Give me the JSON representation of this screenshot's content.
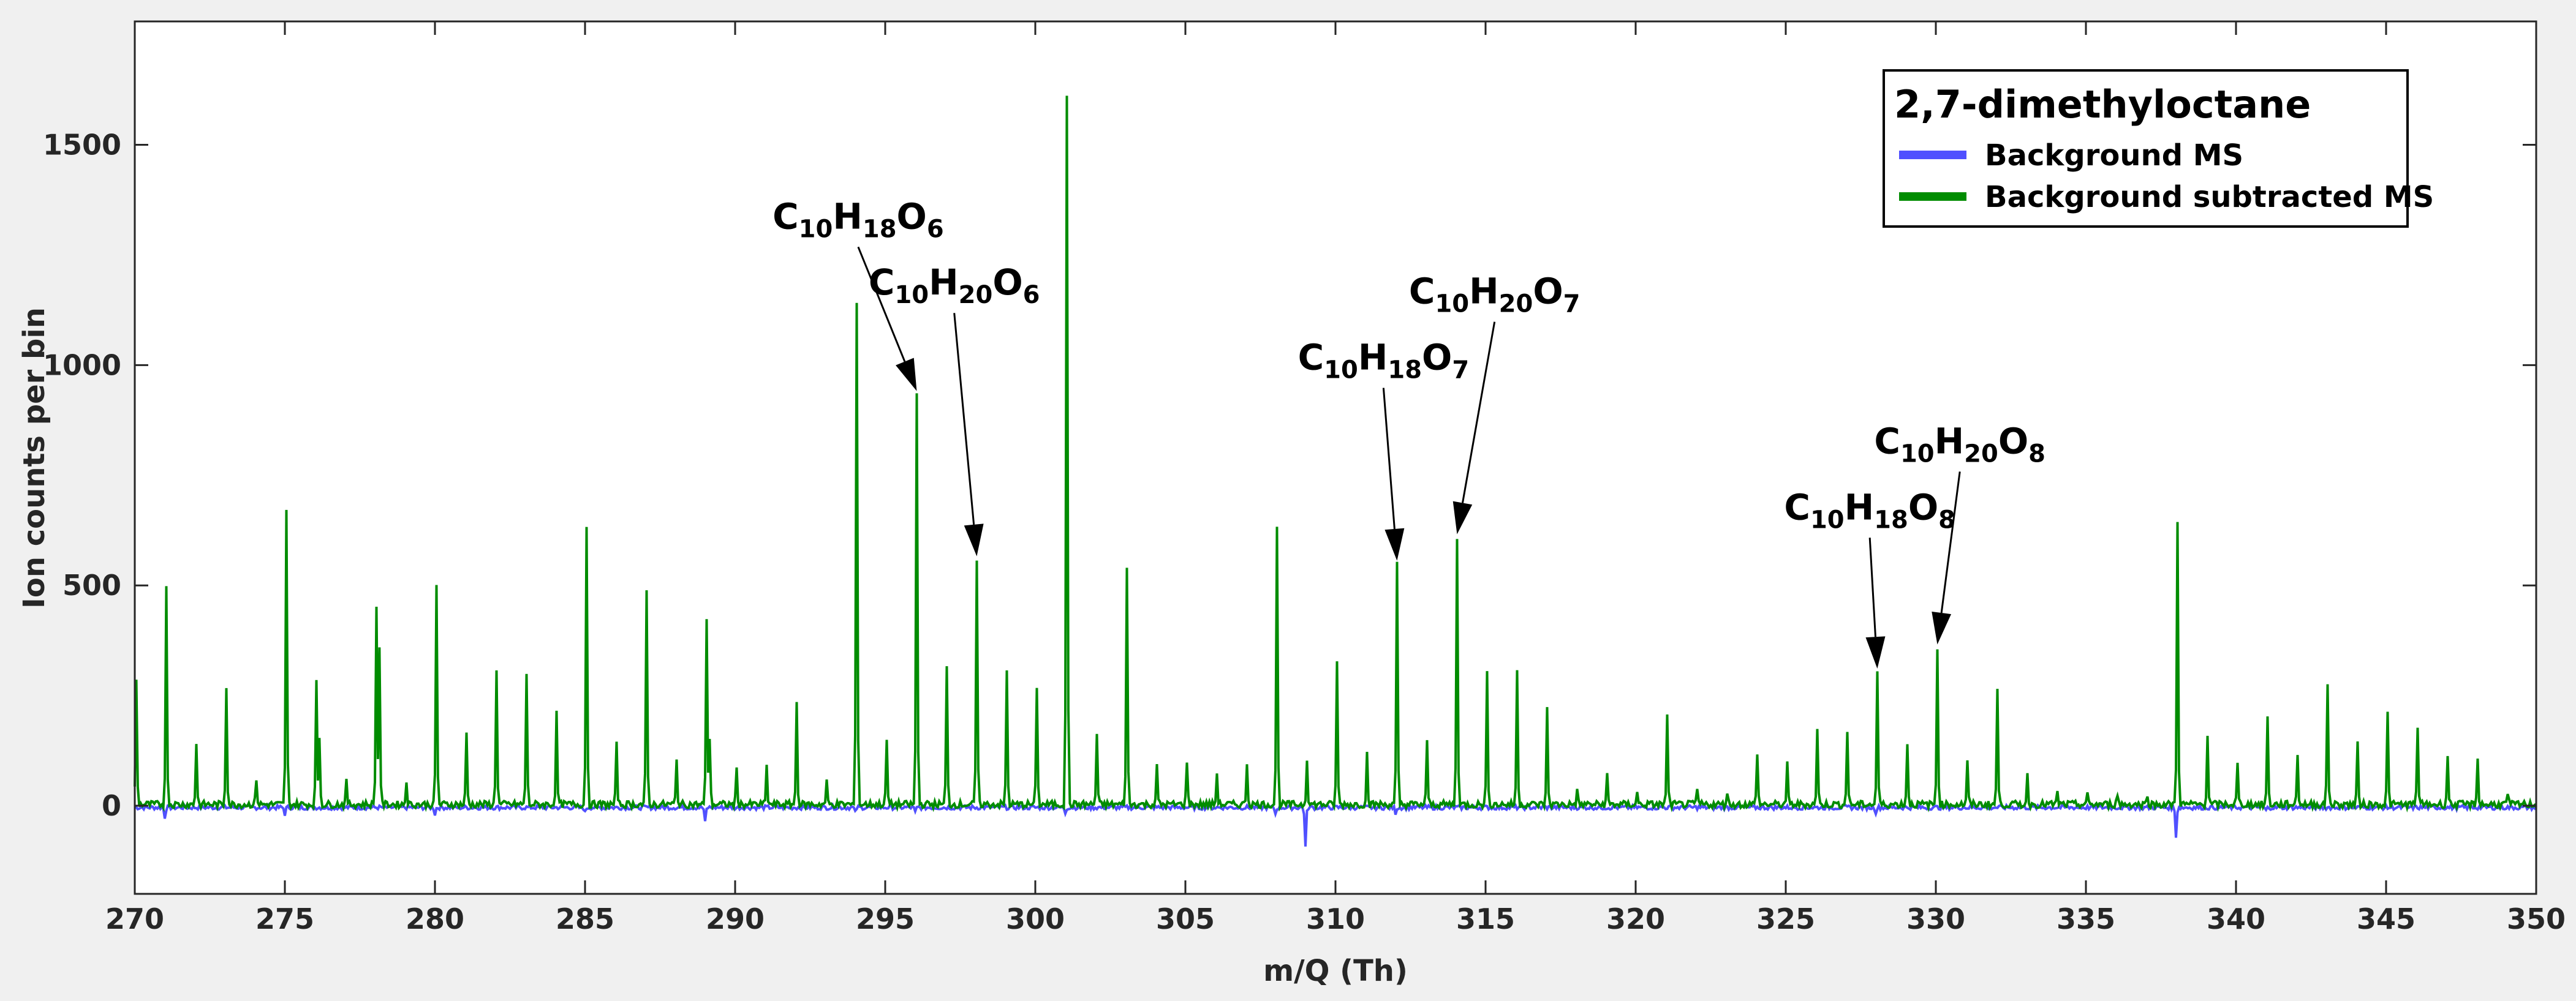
{
  "chart_data": {
    "type": "line",
    "title": "2,7-dimethyloctane",
    "xlabel": "m/Q (Th)",
    "ylabel": "Ion counts per bin",
    "xlim": [
      270,
      350
    ],
    "ylim": [
      -200,
      1780
    ],
    "xticks": [
      270,
      275,
      280,
      285,
      290,
      295,
      300,
      305,
      310,
      315,
      320,
      325,
      330,
      335,
      340,
      345,
      350
    ],
    "yticks": [
      0,
      500,
      1000,
      1500
    ],
    "grid": false,
    "legend_position": "top-right",
    "series": [
      {
        "name": "Background MS",
        "color": "#5050ff",
        "peaks": [
          {
            "x": 271.0,
            "y": -22
          },
          {
            "x": 275.0,
            "y": -15
          },
          {
            "x": 280.0,
            "y": -15
          },
          {
            "x": 285.0,
            "y": -12
          },
          {
            "x": 289.0,
            "y": -35
          },
          {
            "x": 294.0,
            "y": -12
          },
          {
            "x": 296.0,
            "y": -12
          },
          {
            "x": 301.0,
            "y": -12
          },
          {
            "x": 308.0,
            "y": -15
          },
          {
            "x": 309.0,
            "y": -90
          },
          {
            "x": 312.0,
            "y": -12
          },
          {
            "x": 328.0,
            "y": -10
          },
          {
            "x": 338.0,
            "y": -65
          },
          {
            "x": 341.0,
            "y": -8
          }
        ]
      },
      {
        "name": "Background subtracted MS",
        "color": "#008c00",
        "peaks": [
          {
            "x": 270.05,
            "y": 285
          },
          {
            "x": 271.05,
            "y": 490
          },
          {
            "x": 272.05,
            "y": 140
          },
          {
            "x": 273.05,
            "y": 270
          },
          {
            "x": 274.05,
            "y": 60
          },
          {
            "x": 275.05,
            "y": 665
          },
          {
            "x": 276.05,
            "y": 275
          },
          {
            "x": 276.15,
            "y": 155
          },
          {
            "x": 277.05,
            "y": 50
          },
          {
            "x": 278.05,
            "y": 445
          },
          {
            "x": 278.15,
            "y": 360
          },
          {
            "x": 279.05,
            "y": 55
          },
          {
            "x": 280.05,
            "y": 495
          },
          {
            "x": 281.05,
            "y": 160
          },
          {
            "x": 282.05,
            "y": 310
          },
          {
            "x": 283.05,
            "y": 295
          },
          {
            "x": 284.05,
            "y": 205
          },
          {
            "x": 285.05,
            "y": 635
          },
          {
            "x": 286.05,
            "y": 135
          },
          {
            "x": 287.05,
            "y": 480
          },
          {
            "x": 288.05,
            "y": 100
          },
          {
            "x": 289.05,
            "y": 425
          },
          {
            "x": 289.15,
            "y": 150
          },
          {
            "x": 290.05,
            "y": 80
          },
          {
            "x": 291.05,
            "y": 85
          },
          {
            "x": 292.05,
            "y": 230
          },
          {
            "x": 293.05,
            "y": 50
          },
          {
            "x": 294.05,
            "y": 1145
          },
          {
            "x": 295.05,
            "y": 145
          },
          {
            "x": 296.05,
            "y": 930
          },
          {
            "x": 297.05,
            "y": 310
          },
          {
            "x": 298.05,
            "y": 555
          },
          {
            "x": 299.05,
            "y": 305
          },
          {
            "x": 300.05,
            "y": 270
          },
          {
            "x": 301.05,
            "y": 1610
          },
          {
            "x": 302.05,
            "y": 160
          },
          {
            "x": 303.05,
            "y": 535
          },
          {
            "x": 304.05,
            "y": 85
          },
          {
            "x": 305.05,
            "y": 100
          },
          {
            "x": 306.05,
            "y": 70
          },
          {
            "x": 307.05,
            "y": 95
          },
          {
            "x": 308.05,
            "y": 625
          },
          {
            "x": 309.05,
            "y": 105
          },
          {
            "x": 310.05,
            "y": 320
          },
          {
            "x": 311.05,
            "y": 115
          },
          {
            "x": 312.05,
            "y": 545
          },
          {
            "x": 313.05,
            "y": 140
          },
          {
            "x": 314.05,
            "y": 605
          },
          {
            "x": 315.05,
            "y": 295
          },
          {
            "x": 316.05,
            "y": 300
          },
          {
            "x": 317.05,
            "y": 215
          },
          {
            "x": 318.05,
            "y": 30
          },
          {
            "x": 319.05,
            "y": 65
          },
          {
            "x": 320.05,
            "y": 25
          },
          {
            "x": 321.05,
            "y": 200
          },
          {
            "x": 322.05,
            "y": 35
          },
          {
            "x": 323.05,
            "y": 30
          },
          {
            "x": 324.05,
            "y": 120
          },
          {
            "x": 325.05,
            "y": 90
          },
          {
            "x": 326.05,
            "y": 170
          },
          {
            "x": 327.05,
            "y": 170
          },
          {
            "x": 328.05,
            "y": 300
          },
          {
            "x": 329.05,
            "y": 140
          },
          {
            "x": 330.05,
            "y": 355
          },
          {
            "x": 331.05,
            "y": 95
          },
          {
            "x": 332.05,
            "y": 260
          },
          {
            "x": 333.05,
            "y": 65
          },
          {
            "x": 334.05,
            "y": 25
          },
          {
            "x": 335.05,
            "y": 20
          },
          {
            "x": 336.05,
            "y": 25
          },
          {
            "x": 337.05,
            "y": 25
          },
          {
            "x": 338.05,
            "y": 640
          },
          {
            "x": 339.05,
            "y": 155
          },
          {
            "x": 340.05,
            "y": 90
          },
          {
            "x": 341.05,
            "y": 195
          },
          {
            "x": 342.05,
            "y": 115
          },
          {
            "x": 343.05,
            "y": 275
          },
          {
            "x": 344.05,
            "y": 135
          },
          {
            "x": 345.05,
            "y": 205
          },
          {
            "x": 346.05,
            "y": 180
          },
          {
            "x": 347.05,
            "y": 110
          },
          {
            "x": 348.05,
            "y": 105
          },
          {
            "x": 349.05,
            "y": 25
          }
        ]
      }
    ],
    "annotations": [
      {
        "formula": {
          "c": "C",
          "cn": "10",
          "h": "H",
          "hn": "18",
          "o": "O",
          "on": "6"
        },
        "mz": 296.05,
        "y": 930,
        "label_x": 294.1,
        "label_y": 1310
      },
      {
        "formula": {
          "c": "C",
          "cn": "10",
          "h": "H",
          "hn": "20",
          "o": "O",
          "on": "6"
        },
        "mz": 298.05,
        "y": 555,
        "label_x": 297.3,
        "label_y": 1160
      },
      {
        "formula": {
          "c": "C",
          "cn": "10",
          "h": "H",
          "hn": "18",
          "o": "O",
          "on": "7"
        },
        "mz": 312.05,
        "y": 545,
        "label_x": 311.6,
        "label_y": 990
      },
      {
        "formula": {
          "c": "C",
          "cn": "10",
          "h": "H",
          "hn": "20",
          "o": "O",
          "on": "7"
        },
        "mz": 314.05,
        "y": 605,
        "label_x": 315.3,
        "label_y": 1140
      },
      {
        "formula": {
          "c": "C",
          "cn": "10",
          "h": "H",
          "hn": "18",
          "o": "O",
          "on": "8"
        },
        "mz": 328.05,
        "y": 300,
        "label_x": 327.8,
        "label_y": 650
      },
      {
        "formula": {
          "c": "C",
          "cn": "10",
          "h": "H",
          "hn": "20",
          "o": "O",
          "on": "8"
        },
        "mz": 330.05,
        "y": 355,
        "label_x": 330.8,
        "label_y": 800
      }
    ]
  }
}
